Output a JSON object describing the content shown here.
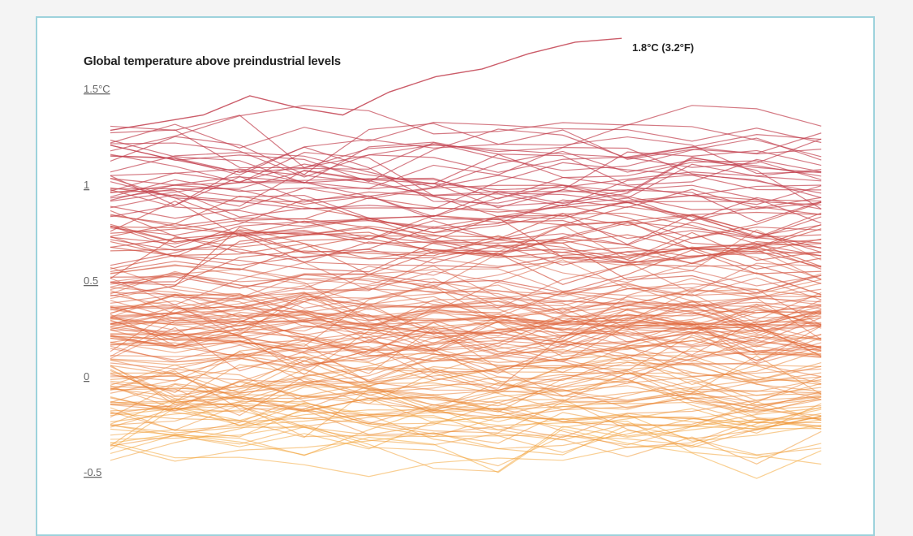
{
  "chart_data": {
    "type": "line",
    "title": "Global temperature above preindustrial levels",
    "annotation": "1.8°C (3.2°F)",
    "ylim": [
      -0.65,
      1.65
    ],
    "y_ticks": [
      {
        "value": 1.5,
        "label": "1.5°C"
      },
      {
        "value": 1,
        "label": "1"
      },
      {
        "value": 0.5,
        "label": "0.5"
      },
      {
        "value": 0,
        "label": "0"
      },
      {
        "value": -0.5,
        "label": "-0.5"
      }
    ],
    "x_points": 12,
    "series_count": 180,
    "highlight_series": {
      "values": [
        1.32,
        1.36,
        1.4,
        1.5,
        1.44,
        1.4,
        1.52,
        1.6,
        1.64,
        1.72,
        1.78,
        1.8
      ]
    },
    "color_scale": {
      "low": "#f6b03a",
      "mid": "#e26a3b",
      "high": "#c2404f"
    },
    "grid": false,
    "legend": "none"
  }
}
